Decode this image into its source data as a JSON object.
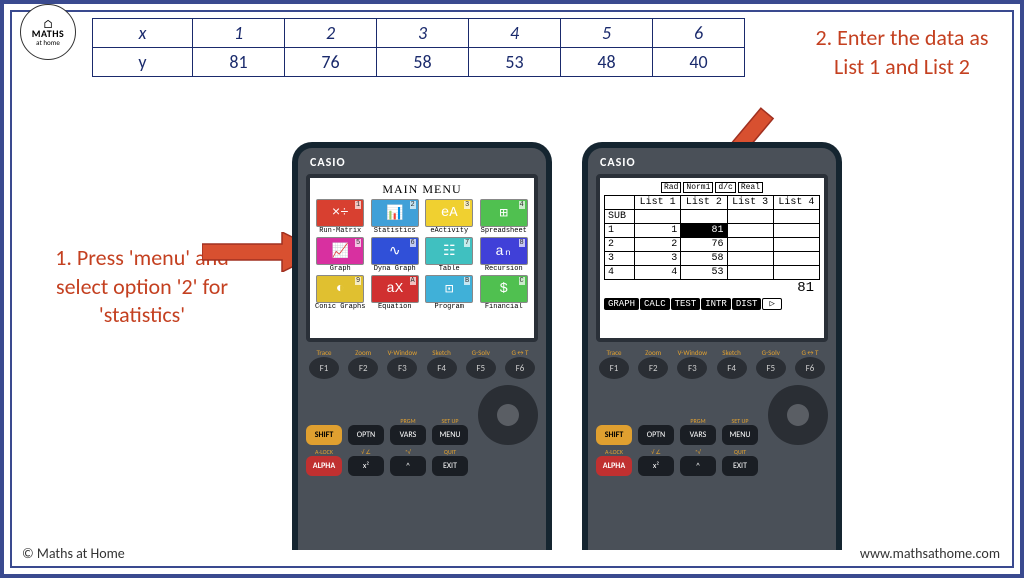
{
  "logo": {
    "roof": "⌂",
    "text1": "MATHS",
    "text2": "at home"
  },
  "table": {
    "headers": [
      "x",
      "1",
      "2",
      "3",
      "4",
      "5",
      "6"
    ],
    "row": [
      "y",
      "81",
      "76",
      "58",
      "53",
      "48",
      "40"
    ]
  },
  "step1": "1.  Press 'menu' and select option '2' for 'statistics'",
  "step2": "2. Enter the data as List 1 and List 2",
  "calc": {
    "brand": "CASIO",
    "menu_title": "MAIN MENU",
    "menu_items": [
      {
        "label": "Run-Matrix",
        "num": "1",
        "color": "#d84030",
        "icon": "×÷"
      },
      {
        "label": "Statistics",
        "num": "2",
        "color": "#40a0d8",
        "icon": "📊"
      },
      {
        "label": "eActivity",
        "num": "3",
        "color": "#f0d030",
        "icon": "eA"
      },
      {
        "label": "Spreadsheet",
        "num": "4",
        "color": "#50c050",
        "icon": "⊞"
      },
      {
        "label": "Graph",
        "num": "5",
        "color": "#d830a0",
        "icon": "📈"
      },
      {
        "label": "Dyna Graph",
        "num": "6",
        "color": "#3050d8",
        "icon": "∿"
      },
      {
        "label": "Table",
        "num": "7",
        "color": "#40c0c0",
        "icon": "☷"
      },
      {
        "label": "Recursion",
        "num": "8",
        "color": "#4040d8",
        "icon": "aₙ"
      },
      {
        "label": "Conic Graphs",
        "num": "9",
        "color": "#e0c030",
        "icon": "◐"
      },
      {
        "label": "Equation",
        "num": "A",
        "color": "#d03030",
        "icon": "aX"
      },
      {
        "label": "Program",
        "num": "B",
        "color": "#40b0d8",
        "icon": "⊡"
      },
      {
        "label": "Financial",
        "num": "C",
        "color": "#50c050",
        "icon": "$"
      }
    ],
    "stats": {
      "badges": [
        "Rad",
        "Norm1",
        "d/c",
        "Real"
      ],
      "list_headers": [
        "",
        "List 1",
        "List 2",
        "List 3",
        "List 4"
      ],
      "sub": "SUB",
      "rows": [
        [
          "1",
          "1",
          "81",
          "",
          ""
        ],
        [
          "2",
          "2",
          "76",
          "",
          ""
        ],
        [
          "3",
          "3",
          "58",
          "",
          ""
        ],
        [
          "4",
          "4",
          "53",
          "",
          ""
        ]
      ],
      "current": "81",
      "tabs": [
        "GRAPH",
        "CALC",
        "TEST",
        "INTR",
        "DIST",
        "▷"
      ]
    },
    "fkeys": [
      {
        "label": "Trace",
        "key": "F1"
      },
      {
        "label": "Zoom",
        "key": "F2"
      },
      {
        "label": "V-Window",
        "key": "F3"
      },
      {
        "label": "Sketch",
        "key": "F4"
      },
      {
        "label": "G-Solv",
        "key": "F5"
      },
      {
        "label": "G↔T",
        "key": "F6"
      }
    ],
    "row2": [
      {
        "top": "",
        "label": "SHIFT",
        "cls": "btn-yellow"
      },
      {
        "top": "",
        "label": "OPTN",
        "cls": "btn-black"
      },
      {
        "top": "PRGM",
        "label": "VARS",
        "cls": "btn-black"
      },
      {
        "top": "SET UP",
        "label": "MENU",
        "cls": "btn-black"
      }
    ],
    "row3": [
      {
        "top": "A-LOCK",
        "label": "ALPHA",
        "cls": "btn-red"
      },
      {
        "top": "√  ∠",
        "label": "x²",
        "cls": "btn-black"
      },
      {
        "top": "ⁿ√",
        "label": "^",
        "cls": "btn-black"
      },
      {
        "top": "QUIT",
        "label": "EXIT",
        "cls": "btn-black"
      }
    ]
  },
  "footer": {
    "left": "© Maths at Home",
    "right": "www.mathsathome.com"
  },
  "colors": {
    "accent": "#c44020",
    "border": "#3a4a8f"
  }
}
